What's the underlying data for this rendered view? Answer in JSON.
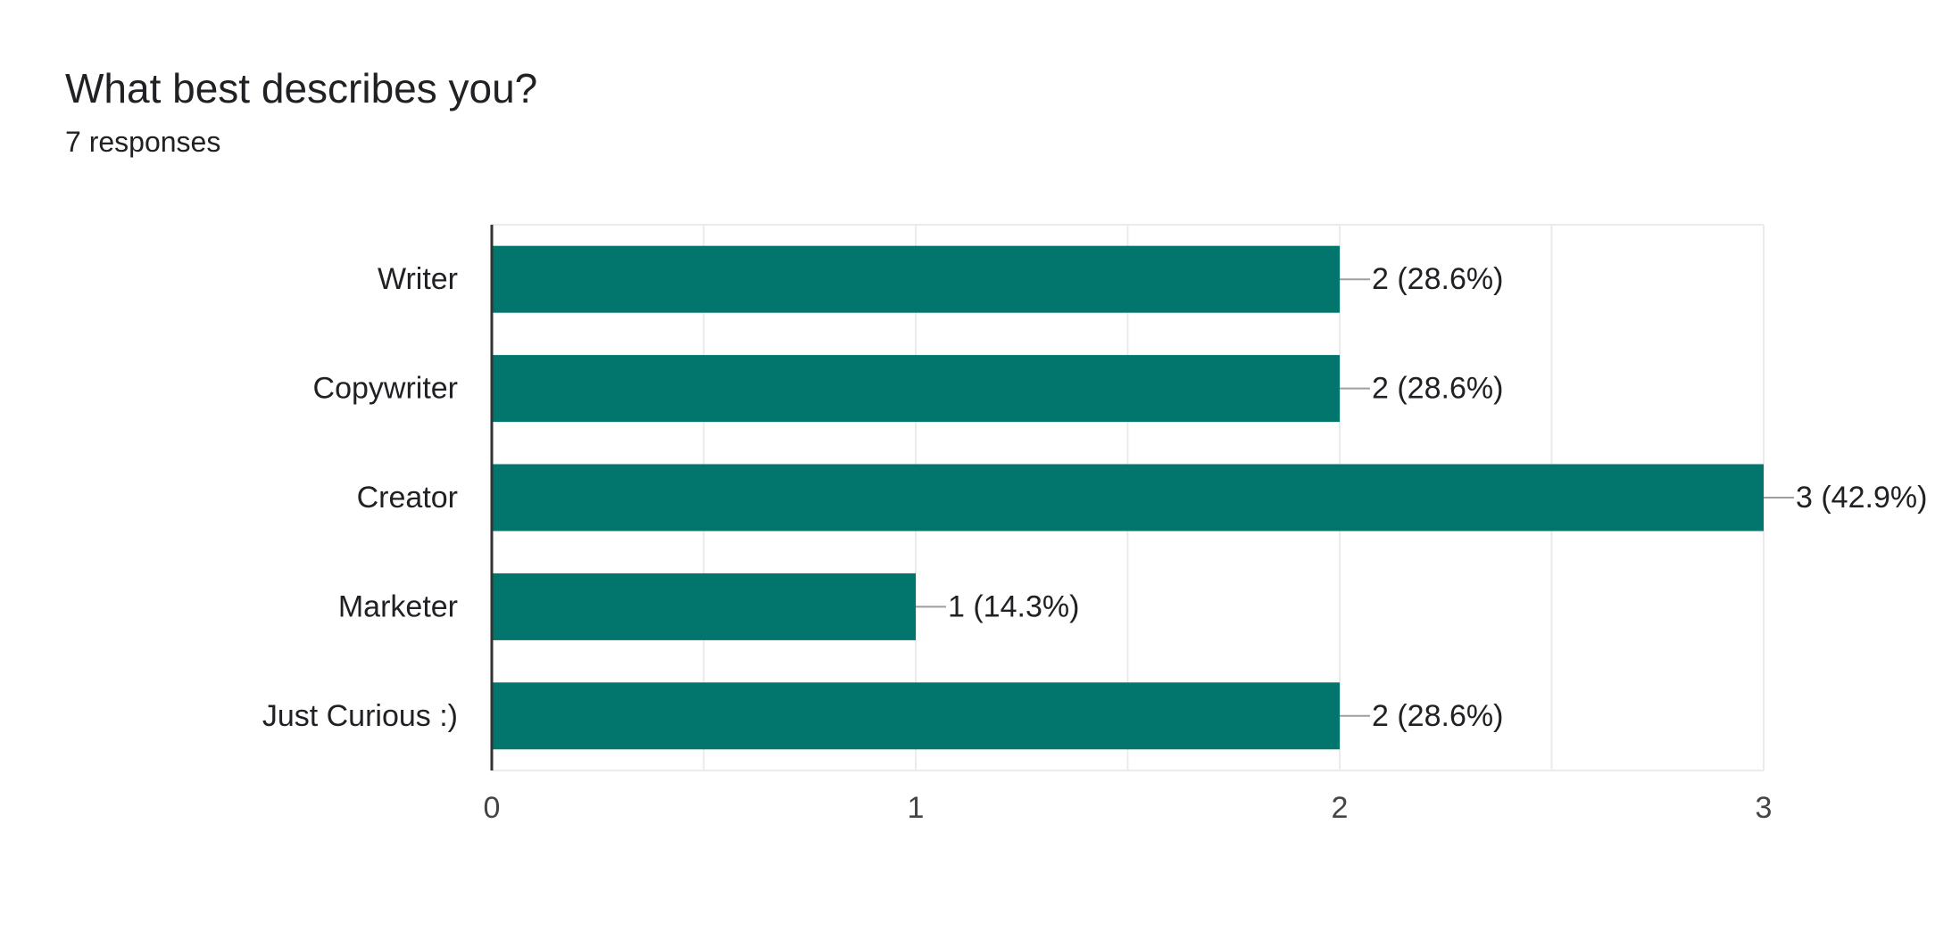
{
  "question": {
    "title": "What best describes you?",
    "responses": "7 responses"
  },
  "colors": {
    "bar": "#02756c",
    "grid": "#ebebeb",
    "axis": "#333333",
    "leader": "#9e9e9e",
    "text": "#202124",
    "tick_text": "#444444"
  },
  "chart_data": {
    "type": "bar",
    "orientation": "horizontal",
    "categories": [
      "Writer",
      "Copywriter",
      "Creator",
      "Marketer",
      "Just Curious :)"
    ],
    "values": [
      2,
      2,
      3,
      1,
      2
    ],
    "data_labels": [
      "2 (28.6%)",
      "2 (28.6%)",
      "3 (42.9%)",
      "1 (14.3%)",
      "2 (28.6%)"
    ],
    "title": "What best describes you?",
    "xlabel": "",
    "ylabel": "",
    "xlim": [
      0,
      3
    ],
    "xticks": [
      0,
      1,
      2,
      3
    ],
    "xtick_labels": [
      "0",
      "1",
      "2",
      "3"
    ],
    "grid": true,
    "legend": "none"
  }
}
